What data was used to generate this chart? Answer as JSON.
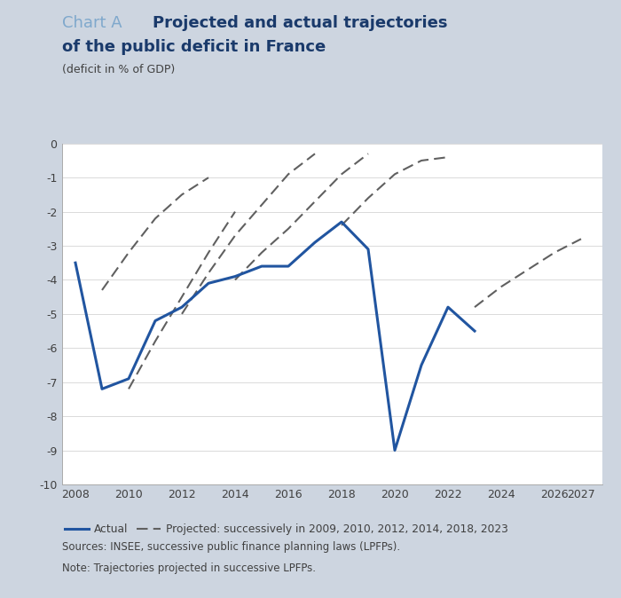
{
  "title_chartA": "Chart A",
  "title_line1": "Projected and actual trajectories",
  "title_line2": "of the public deficit in France",
  "ylabel": "(deficit in % of GDP)",
  "background_color": "#cdd5e0",
  "plot_bg_color": "#ffffff",
  "title_chartA_color": "#7fa8cc",
  "title_main_color": "#1a3a6b",
  "label_color": "#404040",
  "actual": {
    "x": [
      2008,
      2009,
      2010,
      2011,
      2012,
      2013,
      2014,
      2015,
      2016,
      2017,
      2018,
      2019,
      2020,
      2021,
      2022,
      2023
    ],
    "y": [
      -3.5,
      -7.2,
      -6.9,
      -5.2,
      -4.8,
      -4.1,
      -3.9,
      -3.6,
      -3.6,
      -2.9,
      -2.3,
      -3.1,
      -9.0,
      -6.5,
      -4.8,
      -5.5
    ],
    "color": "#2155a0",
    "linewidth": 2.2
  },
  "projected": [
    {
      "x": [
        2009,
        2010,
        2011,
        2012,
        2013
      ],
      "y": [
        -4.3,
        -3.2,
        -2.2,
        -1.5,
        -1.0
      ]
    },
    {
      "x": [
        2010,
        2011,
        2012,
        2013,
        2014
      ],
      "y": [
        -7.2,
        -5.8,
        -4.5,
        -3.2,
        -2.0
      ]
    },
    {
      "x": [
        2012,
        2013,
        2014,
        2015,
        2016,
        2017
      ],
      "y": [
        -5.0,
        -3.8,
        -2.7,
        -1.8,
        -0.9,
        -0.3
      ]
    },
    {
      "x": [
        2014,
        2015,
        2016,
        2017,
        2018,
        2019
      ],
      "y": [
        -4.0,
        -3.2,
        -2.5,
        -1.7,
        -0.9,
        -0.3
      ]
    },
    {
      "x": [
        2018,
        2019,
        2020,
        2021,
        2022
      ],
      "y": [
        -2.4,
        -1.6,
        -0.9,
        -0.5,
        -0.4
      ]
    },
    {
      "x": [
        2023,
        2024,
        2025,
        2026,
        2027
      ],
      "y": [
        -4.8,
        -4.2,
        -3.7,
        -3.2,
        -2.8
      ]
    }
  ],
  "projected_color": "#606060",
  "projected_linewidth": 1.5,
  "xlim": [
    2007.5,
    2027.8
  ],
  "ylim": [
    -10,
    0
  ],
  "yticks": [
    0,
    -1,
    -2,
    -3,
    -4,
    -5,
    -6,
    -7,
    -8,
    -9,
    -10
  ],
  "xticks": [
    2008,
    2010,
    2012,
    2014,
    2016,
    2018,
    2020,
    2022,
    2024,
    2026,
    2027
  ],
  "xtick_labels": [
    "2008",
    "2010",
    "2012",
    "2014",
    "2016",
    "2018",
    "2020",
    "2022",
    "2024",
    "2026",
    "2027"
  ],
  "legend_actual": "Actual",
  "legend_projected": "Projected: successively in 2009, 2010, 2012, 2014, 2018, 2023",
  "sources_text": "Sources: INSEE, successive public finance planning laws (LPFPs).",
  "note_text": "Note: Trajectories projected in successive LPFPs."
}
